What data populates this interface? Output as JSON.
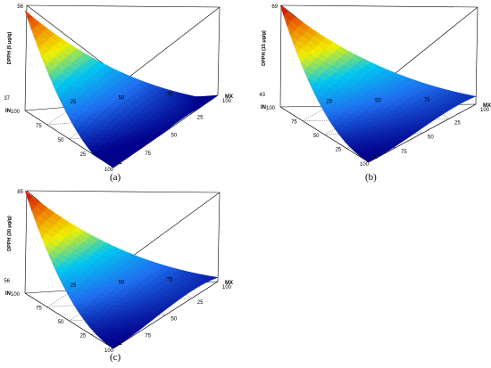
{
  "chart_data": [
    {
      "type": "surface",
      "panel_label": "(a)",
      "zlabel": "DPPH (5 μg/g)",
      "zlim": [
        37,
        56
      ],
      "z_ticks": [
        "56",
        "37"
      ],
      "axes": {
        "IN": "IN",
        "L": "L",
        "MX": "MX"
      },
      "ticks": {
        "IN": [
          "100",
          "75",
          "50",
          "25"
        ],
        "L": [
          "100",
          "75",
          "50",
          "25"
        ],
        "MX": [
          "100",
          "75",
          "50",
          "25"
        ]
      },
      "colormap": [
        "#00008b",
        "#1e6ef0",
        "#00c8f0",
        "#f0f000",
        "#f08000",
        "#c80000"
      ]
    },
    {
      "type": "surface",
      "panel_label": "(b)",
      "zlabel": "DPPH (15 μg/g)",
      "zlim": [
        43,
        69
      ],
      "z_ticks": [
        "69",
        "43"
      ],
      "axes": {
        "IN": "IN",
        "L": "L",
        "MX": "MX"
      },
      "ticks": {
        "IN": [
          "100",
          "75",
          "50",
          "25"
        ],
        "L": [
          "100",
          "75",
          "50",
          "25"
        ],
        "MX": [
          "100",
          "75",
          "50",
          "25"
        ]
      },
      "colormap": [
        "#00008b",
        "#1e6ef0",
        "#00c8f0",
        "#f0f000",
        "#f08000",
        "#c80000"
      ]
    },
    {
      "type": "surface",
      "panel_label": "(c)",
      "zlabel": "DPPH (30 μg/g)",
      "zlim": [
        56,
        85
      ],
      "z_ticks": [
        "85",
        "56"
      ],
      "axes": {
        "IN": "IN",
        "L": "L",
        "MX": "MX"
      },
      "ticks": {
        "IN": [
          "100",
          "75",
          "50",
          "25"
        ],
        "L": [
          "100",
          "75",
          "50",
          "25"
        ],
        "MX": [
          "100",
          "75",
          "50",
          "25"
        ]
      },
      "colormap": [
        "#00008b",
        "#1e6ef0",
        "#00c8f0",
        "#f0f000",
        "#f08000",
        "#c80000"
      ]
    }
  ]
}
